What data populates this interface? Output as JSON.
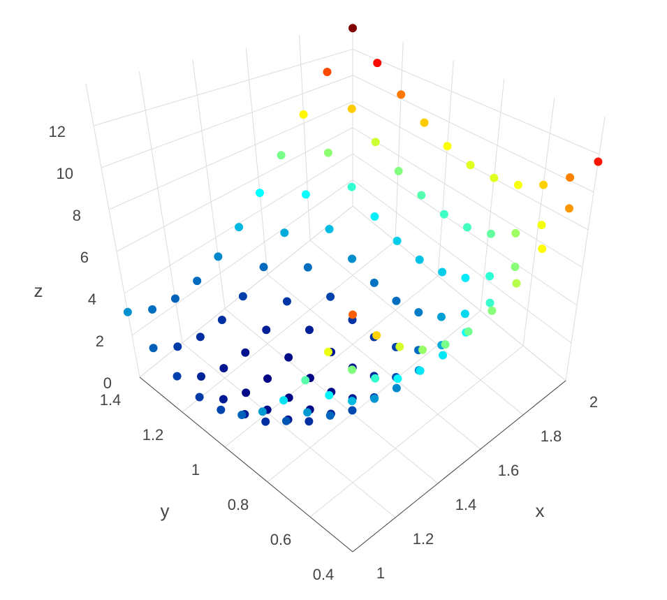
{
  "chart_data": {
    "type": "scatter3d",
    "x_title": "x",
    "y_title": "y",
    "z_title": "z",
    "x": [
      1,
      1.1,
      1.2,
      1.3,
      1.4,
      1.5,
      1.6,
      1.7,
      1.8,
      1.9,
      2
    ],
    "y": [
      0.4,
      0.5,
      0.6,
      0.7,
      0.8,
      0.9,
      1,
      1.1,
      1.2,
      1.3,
      1.4
    ],
    "z": [
      [
        10.61,
        9.06,
        7.89,
        7.07,
        6.63,
        6.54,
        6.83,
        7.47,
        8.49,
        9.86,
        11.61
      ],
      [
        8.21,
        6.76,
        5.68,
        4.96,
        4.61,
        4.62,
        5.0,
        5.74,
        6.85,
        8.32,
        10.16
      ],
      [
        6.19,
        4.83,
        3.85,
        3.22,
        2.97,
        3.07,
        3.55,
        4.38,
        5.59,
        7.15,
        9.09
      ],
      [
        4.52,
        3.26,
        2.37,
        1.84,
        1.68,
        1.88,
        2.45,
        3.38,
        4.68,
        6.34,
        8.37
      ],
      [
        3.23,
        2.06,
        1.27,
        0.83,
        0.77,
        1.06,
        1.73,
        2.75,
        4.15,
        5.9,
        8.03
      ],
      [
        2.29,
        1.22,
        0.52,
        0.18,
        0.21,
        0.6,
        1.36,
        2.48,
        3.97,
        5.82,
        8.04
      ],
      [
        1.73,
        0.75,
        0.15,
        -0.1,
        0.03,
        0.51,
        1.37,
        2.58,
        4.17,
        6.11,
        8.43
      ],
      [
        1.52,
        0.64,
        0.13,
        -0.02,
        0.2,
        0.78,
        1.73,
        3.04,
        4.72,
        6.76,
        9.17
      ],
      [
        1.69,
        0.9,
        0.49,
        0.43,
        0.75,
        1.42,
        2.47,
        3.87,
        5.65,
        7.78,
        10.29
      ],
      [
        2.21,
        1.52,
        1.2,
        1.24,
        1.65,
        2.42,
        3.56,
        5.06,
        6.93,
        9.16,
        11.76
      ],
      [
        3.11,
        2.51,
        2.29,
        2.42,
        2.93,
        3.79,
        5.03,
        6.62,
        8.59,
        10.91,
        13.61
      ]
    ],
    "xlim": [
      1,
      2
    ],
    "ylim": [
      0.4,
      1.4
    ],
    "zlim": [
      0,
      14
    ],
    "xticks": [
      1,
      1.2,
      1.4,
      1.6,
      1.8,
      2
    ],
    "yticks": [
      0.4,
      0.6,
      0.8,
      1,
      1.2,
      1.4
    ],
    "zticks": [
      0,
      2,
      4,
      6,
      8,
      10,
      12
    ],
    "colorscale": "Jet",
    "grid": true
  }
}
